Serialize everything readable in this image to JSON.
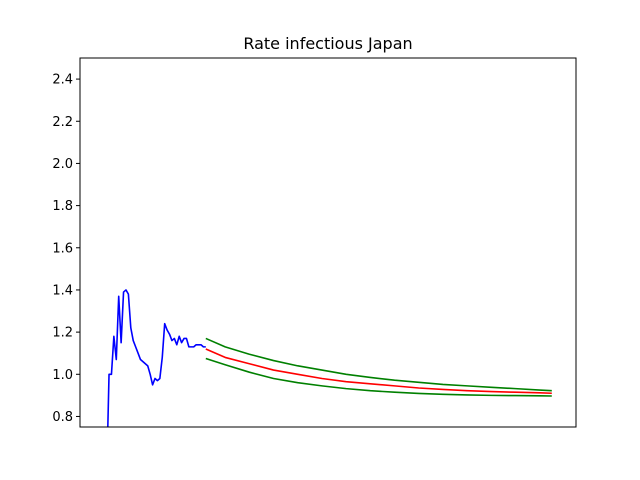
{
  "chart_data": {
    "type": "line",
    "title": "Rate infectious Japan",
    "xlabel": "",
    "ylabel": "",
    "xlim": [
      -10,
      195
    ],
    "ylim": [
      0.75,
      2.5
    ],
    "grid": false,
    "xticks_visible": false,
    "yticks": [
      0.8,
      1.0,
      1.2,
      1.4,
      1.6,
      1.8,
      2.0,
      2.2,
      2.4
    ],
    "ytick_labels": [
      "0.8",
      "1.0",
      "1.2",
      "1.4",
      "1.6",
      "1.8",
      "2.0",
      "2.2",
      "2.4"
    ],
    "series": [
      {
        "color": "#0000ff",
        "x": [
          1.5,
          2,
          3,
          4,
          5,
          6,
          7,
          8,
          9,
          10,
          11,
          12,
          13,
          14,
          15,
          16,
          17,
          18,
          19,
          20,
          21,
          22,
          23,
          24,
          25,
          26,
          27,
          28,
          29,
          30,
          31,
          32,
          33,
          34,
          35,
          36,
          37,
          38,
          39,
          40,
          41,
          42
        ],
        "y": [
          0.75,
          1.0,
          1.0,
          1.18,
          1.07,
          1.37,
          1.15,
          1.39,
          1.4,
          1.38,
          1.22,
          1.16,
          1.13,
          1.1,
          1.07,
          1.06,
          1.05,
          1.04,
          1.0,
          0.95,
          0.98,
          0.97,
          0.98,
          1.08,
          1.24,
          1.21,
          1.19,
          1.16,
          1.17,
          1.14,
          1.18,
          1.15,
          1.17,
          1.17,
          1.13,
          1.13,
          1.13,
          1.14,
          1.14,
          1.14,
          1.13,
          1.13
        ]
      },
      {
        "color": "#ff0000",
        "x": [
          42,
          50,
          60,
          70,
          80,
          90,
          100,
          110,
          120,
          130,
          140,
          150,
          160,
          170,
          180,
          185
        ],
        "y": [
          1.12,
          1.08,
          1.05,
          1.02,
          1.0,
          0.98,
          0.965,
          0.955,
          0.945,
          0.935,
          0.928,
          0.922,
          0.918,
          0.915,
          0.912,
          0.91
        ]
      },
      {
        "color": "#008000",
        "x": [
          42,
          50,
          60,
          70,
          80,
          90,
          100,
          110,
          120,
          130,
          140,
          150,
          160,
          170,
          180,
          185
        ],
        "y": [
          1.17,
          1.13,
          1.095,
          1.065,
          1.04,
          1.02,
          1.0,
          0.985,
          0.972,
          0.962,
          0.952,
          0.945,
          0.938,
          0.932,
          0.925,
          0.922
        ]
      },
      {
        "color": "#008000",
        "x": [
          42,
          50,
          60,
          70,
          80,
          90,
          100,
          110,
          120,
          130,
          140,
          150,
          160,
          170,
          180,
          185
        ],
        "y": [
          1.075,
          1.045,
          1.01,
          0.98,
          0.96,
          0.945,
          0.932,
          0.922,
          0.915,
          0.909,
          0.905,
          0.902,
          0.9,
          0.899,
          0.898,
          0.897
        ]
      }
    ]
  }
}
